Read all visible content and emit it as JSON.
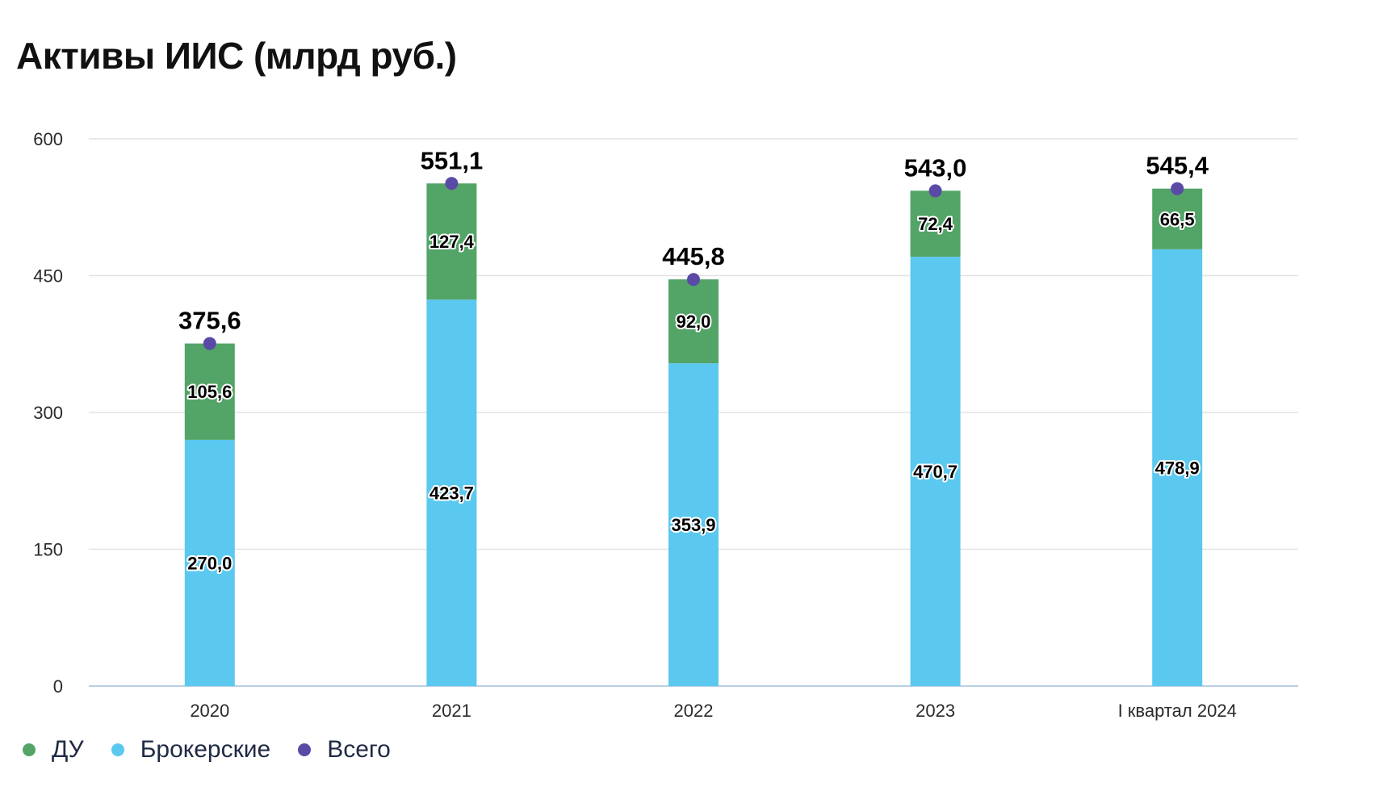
{
  "chart_data": {
    "type": "bar",
    "stacked": true,
    "title": "Активы ИИС (млрд руб.)",
    "categories": [
      "2020",
      "2021",
      "2022",
      "2023",
      "I квартал 2024"
    ],
    "ylim": [
      0,
      600
    ],
    "yticks": [
      "0",
      "150",
      "300",
      "450",
      "600"
    ],
    "ytick_values": [
      0,
      150,
      300,
      450,
      600
    ],
    "grid": true,
    "legend_position": "bottom-left",
    "series": [
      {
        "name": "Брокерские",
        "color": "#5bc8ef",
        "values": [
          270.0,
          423.7,
          353.9,
          470.7,
          478.9
        ],
        "labels": [
          "270,0",
          "423,7",
          "353,9",
          "470,7",
          "478,9"
        ]
      },
      {
        "name": "ДУ",
        "color": "#53a467",
        "values": [
          105.6,
          127.4,
          92.0,
          72.4,
          66.5
        ],
        "labels": [
          "105,6",
          "127,4",
          "92,0",
          "72,4",
          "66,5"
        ]
      },
      {
        "name": "Всего",
        "type": "scatter",
        "color": "#5a4aa6",
        "values": [
          375.6,
          551.1,
          445.8,
          543.0,
          545.4
        ],
        "labels": [
          "375,6",
          "551,1",
          "445,8",
          "543,0",
          "545,4"
        ]
      }
    ],
    "legend": [
      {
        "name": "ДУ",
        "color": "#53a467"
      },
      {
        "name": "Брокерские",
        "color": "#5bc8ef"
      },
      {
        "name": "Всего",
        "color": "#5a4aa6"
      }
    ]
  }
}
